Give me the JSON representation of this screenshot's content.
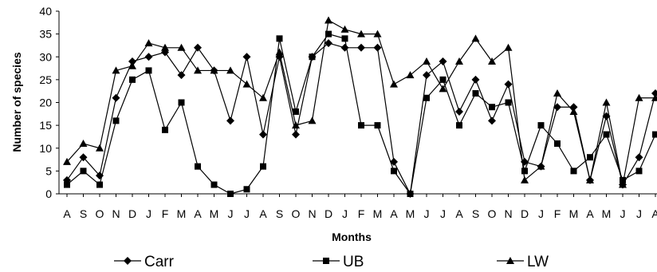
{
  "chart_data": {
    "type": "line",
    "xlabel": "Months",
    "ylabel": "Number of species",
    "ylim": [
      0,
      40
    ],
    "yticks": [
      0,
      5,
      10,
      15,
      20,
      25,
      30,
      35,
      40
    ],
    "grid": false,
    "legend_position": "bottom",
    "categories": [
      "A",
      "S",
      "O",
      "N",
      "D",
      "J",
      "F",
      "M",
      "A",
      "M",
      "J",
      "J",
      "A",
      "S",
      "O",
      "N",
      "D",
      "J",
      "F",
      "M",
      "A",
      "M",
      "J",
      "J",
      "A",
      "S",
      "O",
      "N",
      "D",
      "J",
      "F",
      "M",
      "A",
      "M",
      "J",
      "J",
      "A"
    ],
    "series": [
      {
        "name": "Carr",
        "marker": "diamond",
        "values": [
          3,
          8,
          4,
          21,
          29,
          30,
          31,
          26,
          32,
          27,
          16,
          30,
          13,
          30,
          13,
          30,
          33,
          32,
          32,
          32,
          7,
          0,
          26,
          29,
          18,
          25,
          16,
          24,
          7,
          6,
          19,
          19,
          3,
          17,
          2,
          8,
          22
        ]
      },
      {
        "name": "UB",
        "marker": "square",
        "values": [
          2,
          5,
          2,
          16,
          25,
          27,
          14,
          20,
          6,
          2,
          0,
          1,
          6,
          34,
          18,
          30,
          35,
          34,
          15,
          15,
          5,
          0,
          21,
          25,
          15,
          22,
          19,
          20,
          5,
          15,
          11,
          5,
          8,
          13,
          3,
          5,
          13
        ]
      },
      {
        "name": "LW",
        "marker": "triangle",
        "values": [
          7,
          11,
          10,
          27,
          28,
          33,
          32,
          32,
          27,
          27,
          27,
          24,
          21,
          31,
          15,
          16,
          38,
          36,
          35,
          35,
          24,
          26,
          29,
          23,
          29,
          34,
          29,
          32,
          3,
          6,
          22,
          18,
          3,
          20,
          2,
          21,
          21
        ]
      }
    ]
  }
}
